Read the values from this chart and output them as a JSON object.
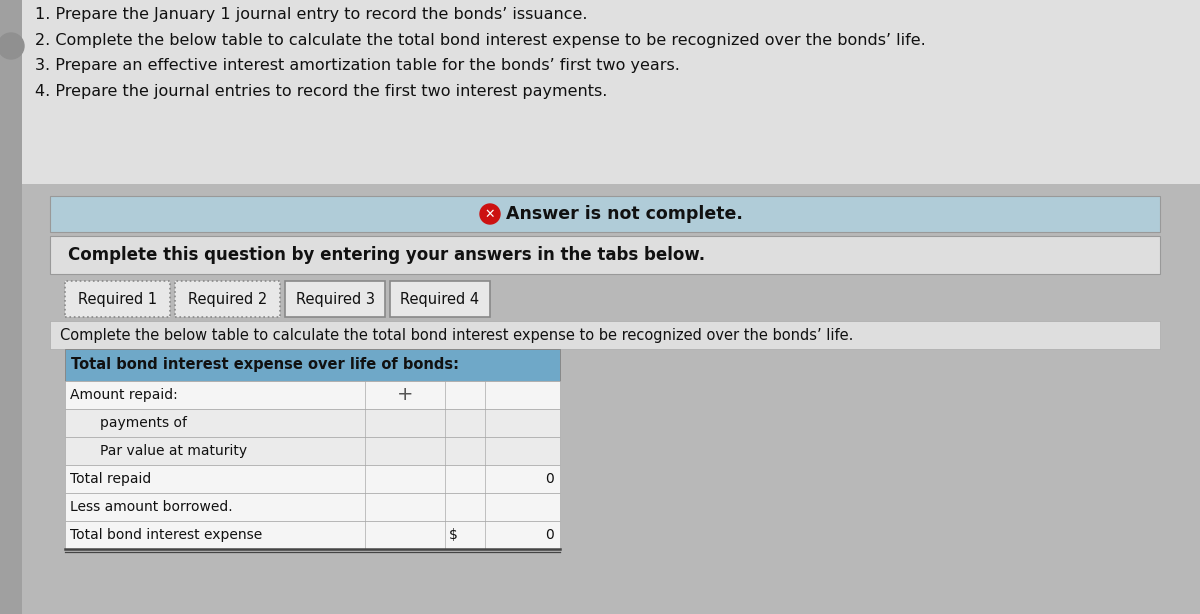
{
  "bg_color": "#c8c8c8",
  "instr_bg": "#e0e0e0",
  "panel_bg": "#b8b8b8",
  "white": "#ffffff",
  "light_blue_banner": "#b0ccd8",
  "blue_tab_active": "#6fa8c8",
  "tab_bg": "#c8c8c8",
  "table_header_blue": "#6fa8c8",
  "row_white": "#f5f5f5",
  "row_light": "#ebebeb",
  "instructions": [
    "1. Prepare the January 1 journal entry to record the bonds’ issuance.",
    "2. Complete the below table to calculate the total bond interest expense to be recognized over the bonds’ life.",
    "3. Prepare an effective interest amortization table for the bonds’ first two years.",
    "4. Prepare the journal entries to record the first two interest payments."
  ],
  "answer_not_complete": "Answer is not complete.",
  "complete_question_text": "Complete this question by entering your answers in the tabs below.",
  "tabs": [
    "Required 1",
    "Required 2",
    "Required 3",
    "Required 4"
  ],
  "table_instruction": "Complete the below table to calculate the total bond interest expense to be recognized over the bonds’ life.",
  "table_header": "Total bond interest expense over life of bonds:",
  "table_rows": [
    {
      "label": "Amount repaid:",
      "col1": "",
      "col2": "",
      "indent": 0,
      "show_plus": true
    },
    {
      "label": "payments of",
      "col1": "",
      "col2": "",
      "indent": 1,
      "show_plus": false
    },
    {
      "label": "Par value at maturity",
      "col1": "",
      "col2": "",
      "indent": 1,
      "show_plus": false
    },
    {
      "label": "Total repaid",
      "col1": "",
      "col2": "0",
      "indent": 0,
      "show_plus": false
    },
    {
      "label": "Less amount borrowed.",
      "col1": "",
      "col2": "",
      "indent": 0,
      "show_plus": false
    },
    {
      "label": "Total bond interest expense",
      "col1": "$",
      "col2": "0",
      "indent": 0,
      "show_plus": false
    }
  ],
  "left_strip_color": "#a0a0a0",
  "grid_line_color": "#aaaaaa",
  "border_color": "#888888"
}
